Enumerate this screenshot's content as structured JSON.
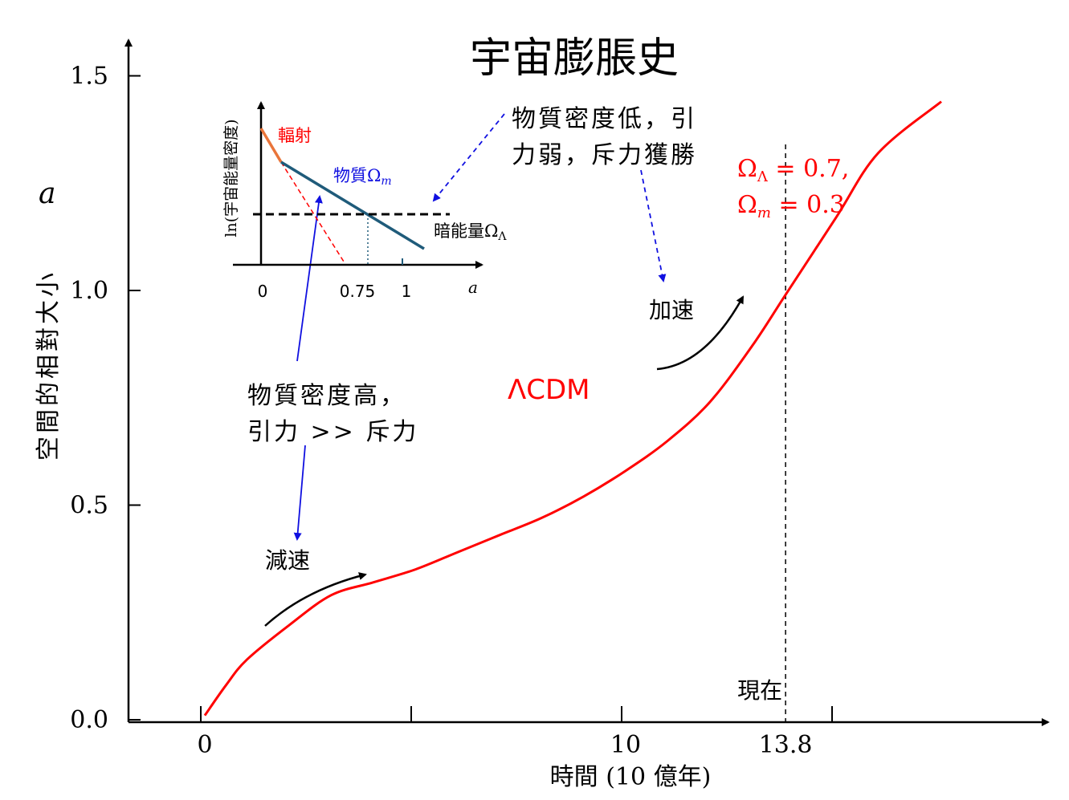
{
  "chart_data": [
    {
      "type": "line",
      "title": "宇宙膨脹史",
      "xlabel": "時間 (10 億年)",
      "ylabel": "空間的相對大小",
      "ysymbol": "a",
      "xticks": [
        "0",
        "10",
        "13.8"
      ],
      "yticks": [
        "0.0",
        "0.5",
        "1.0",
        "1.5"
      ],
      "ylim": [
        0,
        1.5
      ],
      "series": [
        {
          "name": "ΛCDM",
          "color": "#ff0000",
          "x": [
            0,
            0.5,
            1.0,
            2.0,
            3.0,
            4.0,
            5.0,
            6.0,
            7.0,
            8.0,
            9.0,
            10.0,
            11.0,
            12.0,
            13.0,
            13.8,
            15.0,
            16.0,
            17.5
          ],
          "y": [
            0.01,
            0.08,
            0.14,
            0.22,
            0.29,
            0.32,
            0.35,
            0.39,
            0.43,
            0.47,
            0.52,
            0.58,
            0.65,
            0.74,
            0.87,
            0.99,
            1.17,
            1.32,
            1.44
          ]
        }
      ],
      "today_marker": {
        "x": 13.8,
        "label": "現在"
      },
      "params": {
        "line1_sym": "Ω",
        "line1_sub": "Λ",
        "line1_val": " = 0.7,",
        "line2_sym": "Ω",
        "line2_sub": "m",
        "line2_val": " = 0.3"
      },
      "annotations": {
        "model": "ΛCDM",
        "decel_label": "減速",
        "accel_label": "加速",
        "high_density_line1": "物質密度高，",
        "high_density_line2": "引力 >> 斥力",
        "low_density_line1": "物質密度低，引",
        "low_density_line2": "力弱，斥力獲勝"
      }
    },
    {
      "type": "line",
      "title": "",
      "xlabel": "a",
      "ylabel": "ln(宇宙能量密度)",
      "xticks": [
        "0",
        "0.75",
        "1"
      ],
      "series": [
        {
          "name": "輻射",
          "color": "#e9753a"
        },
        {
          "name": "物質Ω",
          "sub": "m",
          "color": "#1f5b7a"
        },
        {
          "name": "暗能量Ω",
          "sub": "Λ",
          "color": "#000000"
        }
      ]
    }
  ]
}
